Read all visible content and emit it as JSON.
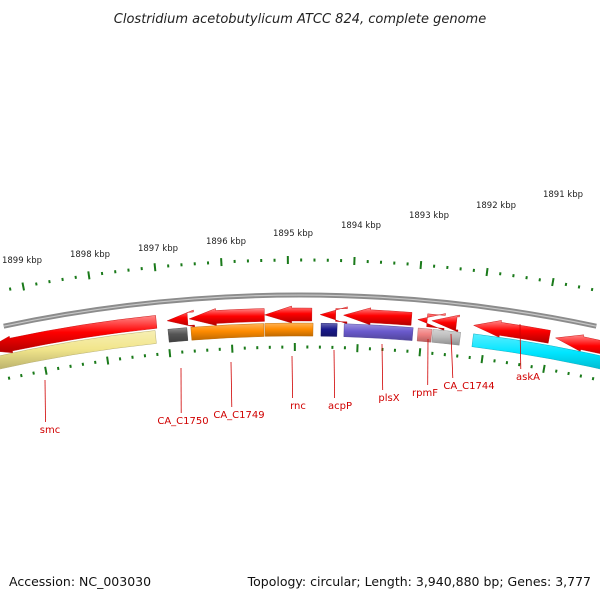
{
  "title": "Clostridium acetobutylicum ATCC 824, complete genome",
  "footer": {
    "accession": "Accession: NC_003030",
    "summary": "Topology: circular; Length: 3,940,880 bp; Genes: 3,777"
  },
  "scale_labels": [
    "1899 kbp",
    "1898 kbp",
    "1897 kbp",
    "1896 kbp",
    "1895 kbp",
    "1894 kbp",
    "1893 kbp",
    "1892 kbp",
    "1891 kbp"
  ],
  "gene_labels": [
    "smc",
    "CA_C1750",
    "CA_C1749",
    "rnc",
    "acpP",
    "plsX",
    "rpmF",
    "CA_C1744",
    "askA"
  ],
  "colors": {
    "backbone": "#8c8c8c",
    "strand_arrow": "#ff0000",
    "tick": "#1a7a1a",
    "label": "#d00000",
    "smc": "#f2e68c",
    "CA_C1750": "#555555",
    "CA_C1749": "#ff8c00",
    "rnc": "#ff8c00",
    "acpP": "#1a1a8c",
    "plsX": "#6a5acd",
    "rpmF": "#f08080",
    "CA_C1744": "#bdbdbd",
    "askA": "#00e5ff"
  }
}
